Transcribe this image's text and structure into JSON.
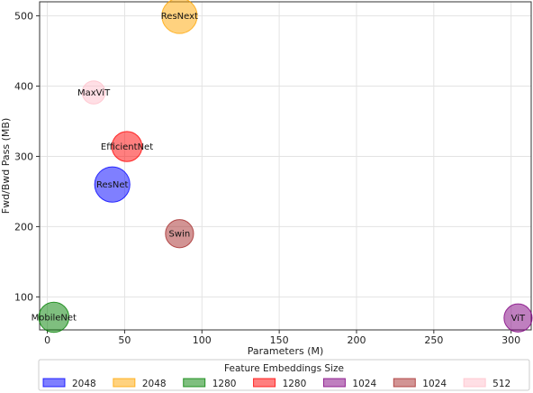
{
  "chart_data": {
    "type": "scatter",
    "xlabel": "Parameters (M)",
    "ylabel": "Fwd/Bwd Pass (MB)",
    "xlim": [
      -5,
      313
    ],
    "ylim": [
      53,
      520
    ],
    "xticks": [
      0,
      50,
      100,
      150,
      200,
      250,
      300
    ],
    "yticks": [
      100,
      200,
      300,
      400,
      500
    ],
    "grid": true,
    "legend_title": "Feature Embeddings Size",
    "legend_position": "bottom",
    "points": [
      {
        "label": "ResNet",
        "x": 42,
        "y": 260,
        "embedding": "2048",
        "color": "#0000ff"
      },
      {
        "label": "ResNext",
        "x": 85.5,
        "y": 500,
        "embedding": "2048",
        "color": "#ffa500"
      },
      {
        "label": "MobileNet",
        "x": 4.2,
        "y": 71,
        "embedding": "1280",
        "color": "#008000"
      },
      {
        "label": "EfficientNet",
        "x": 51.5,
        "y": 314,
        "embedding": "1280",
        "color": "#ff0000"
      },
      {
        "label": "ViT",
        "x": 304.5,
        "y": 70,
        "embedding": "1024",
        "color": "#800080"
      },
      {
        "label": "Swin",
        "x": 85.5,
        "y": 190,
        "embedding": "1024",
        "color": "#a52a2a"
      },
      {
        "label": "MaxViT",
        "x": 30,
        "y": 391,
        "embedding": "512",
        "color": "#ffc0cb"
      }
    ]
  }
}
